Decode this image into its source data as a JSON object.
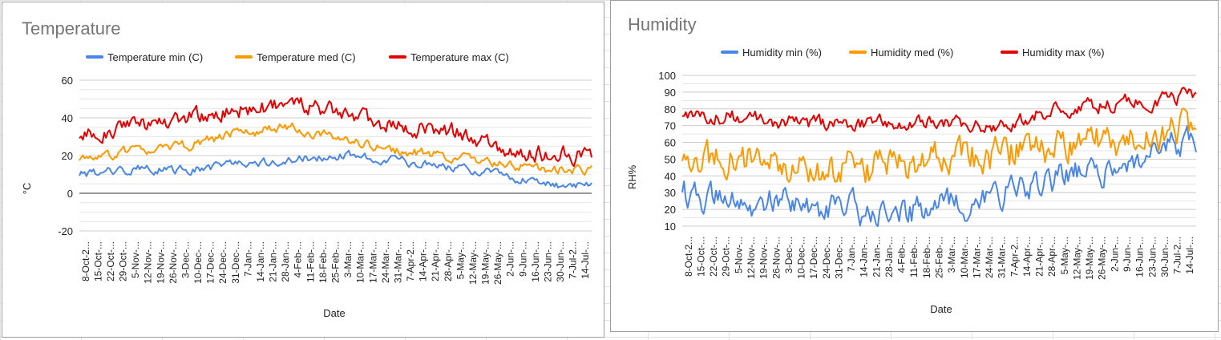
{
  "chart_data": [
    {
      "type": "line",
      "title": "Temperature",
      "xlabel": "Date",
      "ylabel": "°C",
      "ylim": [
        -20,
        60
      ],
      "yticks": [
        -20,
        0,
        20,
        40,
        60
      ],
      "minor_grid_step": 5,
      "legend_position": "top",
      "x_tick_labels": [
        "8-Oct-2...",
        "15-Oct-...",
        "22-Oct-...",
        "29-Oct-...",
        "5-Nov-...",
        "12-Nov-...",
        "19-Nov-...",
        "26-Nov-...",
        "3-Dec-...",
        "10-Dec-...",
        "17-Dec-...",
        "24-Dec-...",
        "31-Dec-...",
        "7-Jan-...",
        "14-Jan-...",
        "21-Jan-...",
        "28-Jan-...",
        "4-Feb-...",
        "11-Feb-...",
        "18-Feb-...",
        "25-Feb-...",
        "3-Mar-...",
        "10-Mar-...",
        "17-Mar-...",
        "24-Mar-...",
        "31-Mar-...",
        "7-Apr-2...",
        "14-Apr-...",
        "21-Apr-...",
        "28-Apr-...",
        "5-May-...",
        "12-May-...",
        "19-May-...",
        "26-May-...",
        "2-Jun-...",
        "9-Jun-...",
        "16-Jun-...",
        "23-Jun-...",
        "30-Jun-...",
        "7-Jul-2...",
        "14-Jul-..."
      ],
      "n_days": 290,
      "series": [
        {
          "name": "Temperature min (C)",
          "color": "#4a86e8",
          "knots": [
            [
              0,
              10
            ],
            [
              30,
              13
            ],
            [
              60,
              12
            ],
            [
              90,
              16
            ],
            [
              120,
              18
            ],
            [
              150,
              20
            ],
            [
              180,
              17
            ],
            [
              210,
              14
            ],
            [
              240,
              10
            ],
            [
              260,
              5
            ],
            [
              270,
              4
            ],
            [
              290,
              5
            ]
          ],
          "amplitude": 3
        },
        {
          "name": "Temperature med (C)",
          "color": "#ff9900",
          "knots": [
            [
              0,
              18
            ],
            [
              30,
              22
            ],
            [
              60,
              25
            ],
            [
              90,
              32
            ],
            [
              120,
              35
            ],
            [
              150,
              28
            ],
            [
              180,
              22
            ],
            [
              210,
              20
            ],
            [
              240,
              15
            ],
            [
              260,
              13
            ],
            [
              290,
              12
            ]
          ],
          "amplitude": 3.5
        },
        {
          "name": "Temperature max (C)",
          "color": "#e60000",
          "knots": [
            [
              0,
              30
            ],
            [
              30,
              36
            ],
            [
              60,
              40
            ],
            [
              90,
              44
            ],
            [
              120,
              47
            ],
            [
              150,
              42
            ],
            [
              180,
              35
            ],
            [
              210,
              33
            ],
            [
              240,
              24
            ],
            [
              260,
              21
            ],
            [
              290,
              20
            ]
          ],
          "amplitude": 6
        }
      ]
    },
    {
      "type": "line",
      "title": "Humidity",
      "xlabel": "Date",
      "ylabel": "RH%",
      "ylim": [
        10,
        100
      ],
      "yticks": [
        10,
        20,
        30,
        40,
        50,
        60,
        70,
        80,
        90,
        100
      ],
      "minor_grid_step": 5,
      "legend_position": "top",
      "x_tick_labels": [
        "8-Oct-2...",
        "15-Oct-...",
        "22-Oct-...",
        "29-Oct-...",
        "5-Nov-...",
        "12-Nov-...",
        "19-Nov-...",
        "26-Nov-...",
        "3-Dec-...",
        "10-Dec-...",
        "17-Dec-...",
        "24-Dec-...",
        "31-Dec-...",
        "7-Jan-...",
        "14-Jan-...",
        "21-Jan-...",
        "28-Jan-...",
        "4-Feb-...",
        "11-Feb-...",
        "18-Feb-...",
        "25-Feb-...",
        "3-Mar-...",
        "10-Mar-...",
        "17-Mar-...",
        "24-Mar-...",
        "31-Mar-...",
        "7-Apr-2...",
        "14-Apr-...",
        "21-Apr-...",
        "28-Apr-...",
        "5-May-...",
        "12-May-...",
        "19-May-...",
        "26-May-...",
        "2-Jun-...",
        "9-Jun-...",
        "16-Jun-...",
        "23-Jun-...",
        "30-Jun-...",
        "7-Jul-2...",
        "14-Jul-..."
      ],
      "n_days": 290,
      "series": [
        {
          "name": "Humidity min (%)",
          "color": "#4a86e8",
          "knots": [
            [
              0,
              30
            ],
            [
              30,
              25
            ],
            [
              60,
              22
            ],
            [
              90,
              20
            ],
            [
              120,
              18
            ],
            [
              150,
              22
            ],
            [
              180,
              28
            ],
            [
              210,
              38
            ],
            [
              240,
              45
            ],
            [
              270,
              55
            ],
            [
              290,
              60
            ]
          ],
          "amplitude": 12
        },
        {
          "name": "Humidity med (%)",
          "color": "#ff9900",
          "knots": [
            [
              0,
              48
            ],
            [
              30,
              50
            ],
            [
              60,
              45
            ],
            [
              90,
              45
            ],
            [
              120,
              45
            ],
            [
              150,
              50
            ],
            [
              180,
              52
            ],
            [
              210,
              58
            ],
            [
              240,
              60
            ],
            [
              270,
              65
            ],
            [
              290,
              72
            ]
          ],
          "amplitude": 14
        },
        {
          "name": "Humidity max (%)",
          "color": "#e60000",
          "knots": [
            [
              0,
              75
            ],
            [
              30,
              75
            ],
            [
              60,
              72
            ],
            [
              90,
              70
            ],
            [
              120,
              72
            ],
            [
              150,
              72
            ],
            [
              180,
              70
            ],
            [
              210,
              80
            ],
            [
              240,
              82
            ],
            [
              270,
              86
            ],
            [
              290,
              90
            ]
          ],
          "amplitude": 6
        }
      ]
    }
  ]
}
